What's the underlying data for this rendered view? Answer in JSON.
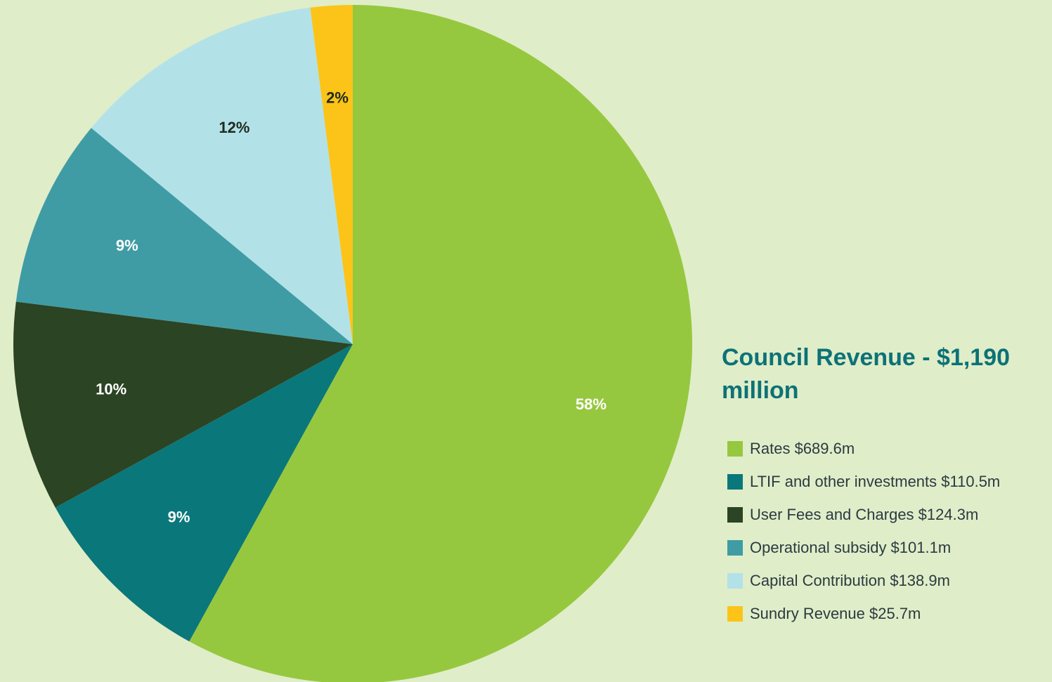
{
  "chart_data": {
    "type": "pie",
    "title": "Council Revenue - $1,190 million",
    "categories": [
      "Rates $689.6m",
      "LTIF and other investments $110.5m",
      "User Fees and Charges $124.3m",
      "Operational subsidy $101.1m",
      "Capital Contribution $138.9m",
      "Sundry Revenue $25.7m"
    ],
    "values": [
      58,
      9,
      10,
      9,
      12,
      2
    ],
    "value_labels": [
      "58%",
      "9%",
      "10%",
      "9%",
      "12%",
      "2%"
    ],
    "colors": [
      "#96c83f",
      "#0a777b",
      "#2b4423",
      "#3f9ca4",
      "#b2e2e8",
      "#fcc418"
    ]
  }
}
